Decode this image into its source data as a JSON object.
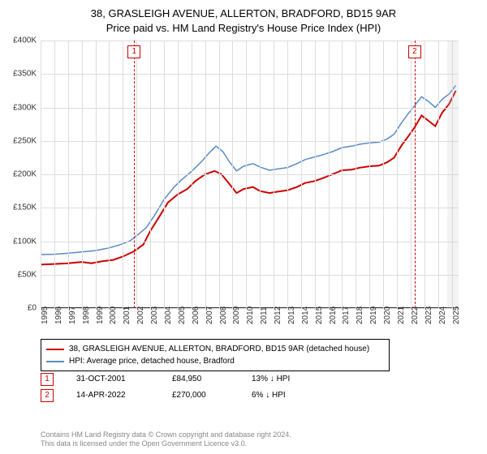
{
  "title_line1": "38, GRASLEIGH AVENUE, ALLERTON, BRADFORD, BD15 9AR",
  "title_line2": "Price paid vs. HM Land Registry's House Price Index (HPI)",
  "chart": {
    "type": "line",
    "background_color": "#ffffff",
    "grid_color": "#dddddd",
    "axis_color": "#333333",
    "ylabel_prefix": "£",
    "ylim": [
      0,
      400000
    ],
    "ytick_step": 50000,
    "yticks": [
      "£0",
      "£50K",
      "£100K",
      "£150K",
      "£200K",
      "£250K",
      "£300K",
      "£350K",
      "£400K"
    ],
    "xlim": [
      1995,
      2025.5
    ],
    "xticks": [
      "1995",
      "1996",
      "1997",
      "1998",
      "1999",
      "2000",
      "2001",
      "2002",
      "2003",
      "2004",
      "2005",
      "2006",
      "2007",
      "2008",
      "2009",
      "2010",
      "2011",
      "2012",
      "2013",
      "2014",
      "2015",
      "2016",
      "2017",
      "2018",
      "2019",
      "2020",
      "2021",
      "2022",
      "2023",
      "2024",
      "2025"
    ],
    "series": [
      {
        "name": "property",
        "color": "#cc0000",
        "width": 2,
        "label": "38, GRASLEIGH AVENUE, ALLERTON, BRADFORD, BD15 9AR (detached house)",
        "points": [
          [
            1995,
            65000
          ],
          [
            1996,
            66000
          ],
          [
            1997,
            67000
          ],
          [
            1998,
            69000
          ],
          [
            1998.7,
            67000
          ],
          [
            1999.5,
            70000
          ],
          [
            2000.3,
            72000
          ],
          [
            2001,
            77000
          ],
          [
            2001.83,
            84950
          ],
          [
            2002.5,
            95000
          ],
          [
            2003,
            115000
          ],
          [
            2003.7,
            138000
          ],
          [
            2004.3,
            158000
          ],
          [
            2005,
            170000
          ],
          [
            2005.7,
            178000
          ],
          [
            2006.3,
            190000
          ],
          [
            2007,
            200000
          ],
          [
            2007.7,
            205000
          ],
          [
            2008.2,
            200000
          ],
          [
            2008.8,
            185000
          ],
          [
            2009.3,
            172000
          ],
          [
            2009.8,
            178000
          ],
          [
            2010.5,
            181000
          ],
          [
            2011,
            175000
          ],
          [
            2011.7,
            172000
          ],
          [
            2012.3,
            174000
          ],
          [
            2013,
            176000
          ],
          [
            2013.7,
            181000
          ],
          [
            2014.3,
            187000
          ],
          [
            2015,
            190000
          ],
          [
            2015.7,
            195000
          ],
          [
            2016.3,
            200000
          ],
          [
            2017,
            206000
          ],
          [
            2017.7,
            207000
          ],
          [
            2018.3,
            210000
          ],
          [
            2019,
            212000
          ],
          [
            2019.7,
            213000
          ],
          [
            2020.3,
            218000
          ],
          [
            2020.8,
            225000
          ],
          [
            2021.3,
            242000
          ],
          [
            2021.8,
            256000
          ],
          [
            2022.29,
            270000
          ],
          [
            2022.8,
            288000
          ],
          [
            2023.3,
            280000
          ],
          [
            2023.8,
            272000
          ],
          [
            2024.3,
            292000
          ],
          [
            2024.8,
            305000
          ],
          [
            2025.3,
            325000
          ]
        ]
      },
      {
        "name": "hpi",
        "color": "#5a8ac6",
        "width": 1.5,
        "label": "HPI: Average price, detached house, Bradford",
        "points": [
          [
            1995,
            80000
          ],
          [
            1996,
            80500
          ],
          [
            1997,
            82000
          ],
          [
            1998,
            84000
          ],
          [
            1999,
            86000
          ],
          [
            2000,
            90000
          ],
          [
            2000.7,
            94000
          ],
          [
            2001.5,
            100000
          ],
          [
            2002,
            108000
          ],
          [
            2002.7,
            120000
          ],
          [
            2003.3,
            138000
          ],
          [
            2004,
            162000
          ],
          [
            2004.7,
            180000
          ],
          [
            2005.3,
            192000
          ],
          [
            2006,
            204000
          ],
          [
            2006.7,
            218000
          ],
          [
            2007.3,
            232000
          ],
          [
            2007.8,
            242000
          ],
          [
            2008.3,
            234000
          ],
          [
            2008.8,
            218000
          ],
          [
            2009.3,
            205000
          ],
          [
            2009.8,
            212000
          ],
          [
            2010.5,
            216000
          ],
          [
            2011,
            211000
          ],
          [
            2011.7,
            206000
          ],
          [
            2012.3,
            208000
          ],
          [
            2013,
            210000
          ],
          [
            2013.7,
            216000
          ],
          [
            2014.3,
            222000
          ],
          [
            2015,
            226000
          ],
          [
            2015.7,
            230000
          ],
          [
            2016.3,
            234000
          ],
          [
            2017,
            240000
          ],
          [
            2017.7,
            242000
          ],
          [
            2018.3,
            245000
          ],
          [
            2019,
            247000
          ],
          [
            2019.7,
            248000
          ],
          [
            2020.3,
            253000
          ],
          [
            2020.8,
            260000
          ],
          [
            2021.3,
            276000
          ],
          [
            2021.8,
            290000
          ],
          [
            2022.3,
            303000
          ],
          [
            2022.8,
            316000
          ],
          [
            2023.3,
            309000
          ],
          [
            2023.8,
            300000
          ],
          [
            2024.3,
            312000
          ],
          [
            2024.8,
            320000
          ],
          [
            2025.3,
            333000
          ]
        ]
      }
    ],
    "markers": [
      {
        "id": "1",
        "x": 2001.83,
        "date": "31-OCT-2001",
        "price": "£84,950",
        "delta": "13% ↓ HPI"
      },
      {
        "id": "2",
        "x": 2022.29,
        "date": "14-APR-2022",
        "price": "£270,000",
        "delta": "6% ↓ HPI"
      }
    ],
    "endband_start": 2024.7
  },
  "legend_label_property": "38, GRASLEIGH AVENUE, ALLERTON, BRADFORD, BD15 9AR (detached house)",
  "legend_label_hpi": "HPI: Average price, detached house, Bradford",
  "footer_line1": "Contains HM Land Registry data © Crown copyright and database right 2024.",
  "footer_line2": "This data is licensed under the Open Government Licence v3.0."
}
